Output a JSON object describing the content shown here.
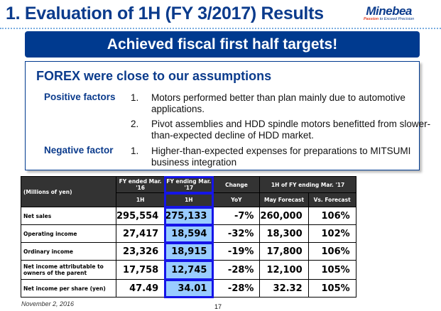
{
  "title": "1. Evaluation of 1H (FY 3/2017) Results",
  "logo": {
    "name": "Minebea",
    "tag_red": "Passion",
    "tag_rest": " to Exceed Precision"
  },
  "banner": "Achieved fiscal first half targets!",
  "box": {
    "heading": "FOREX were close to our assumptions",
    "positive_label": "Positive factors",
    "negative_label": "Negative factor",
    "positive": [
      {
        "n": "1.",
        "t": "Motors performed better than plan mainly due to automotive applications."
      },
      {
        "n": "2.",
        "t": "Pivot assemblies and HDD spindle motors benefitted from slower-than-expected decline of HDD market."
      }
    ],
    "negative": [
      {
        "n": "1.",
        "t": "Higher-than-expected expenses for preparations to MITSUMI business integration"
      }
    ]
  },
  "table": {
    "unit": "(Millions of yen)",
    "h_fy16": "FY ended Mar. '16",
    "h_fy17": "FY ending Mar. '17",
    "h_change": "Change",
    "h_group": "1H of FY ending Mar. '17",
    "s_fy16": "1H",
    "s_fy17": "1H",
    "s_change": "YoY",
    "s_may": "May Forecast",
    "s_vs": "Vs. Forecast",
    "rows": [
      {
        "label": "Net sales",
        "fy16": "295,554",
        "fy17": "275,133",
        "yoy": "-7%",
        "may": "260,000",
        "vs": "106%"
      },
      {
        "label": "Operating income",
        "fy16": "27,417",
        "fy17": "18,594",
        "yoy": "-32%",
        "may": "18,300",
        "vs": "102%"
      },
      {
        "label": "Ordinary income",
        "fy16": "23,326",
        "fy17": "18,915",
        "yoy": "-19%",
        "may": "17,800",
        "vs": "106%"
      },
      {
        "label": "Net income attributable to owners of the parent",
        "fy16": "17,758",
        "fy17": "12,745",
        "yoy": "-28%",
        "may": "12,100",
        "vs": "105%"
      },
      {
        "label": "Net income per share (yen)",
        "fy16": "47.49",
        "fy17": "34.01",
        "yoy": "-28%",
        "may": "32.32",
        "vs": "105%"
      }
    ]
  },
  "footer": {
    "date": "November 2, 2016",
    "page": "17"
  }
}
